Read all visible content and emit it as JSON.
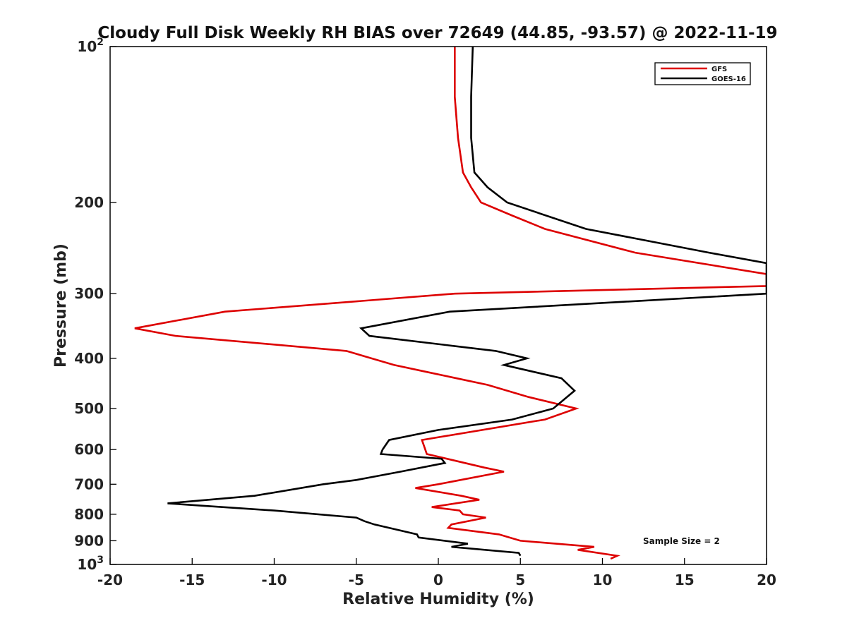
{
  "chart_data": {
    "type": "line",
    "title": "Cloudy Full Disk Weekly RH BIAS over 72649 (44.85, -93.57) @ 2022-11-19",
    "xlabel": "Relative Humidity (%)",
    "ylabel": "Pressure (mb)",
    "xlim": [
      -20,
      20
    ],
    "ylim": [
      100,
      1000
    ],
    "y_scale": "log",
    "y_reversed": true,
    "x_ticks": [
      "-20",
      "-15",
      "-10",
      "-5",
      "0",
      "5",
      "10",
      "15",
      "20"
    ],
    "y_ticks": [
      {
        "value": 100,
        "base": "10",
        "exp": "2"
      },
      {
        "value": 200,
        "label": "200"
      },
      {
        "value": 300,
        "label": "300"
      },
      {
        "value": 400,
        "label": "400"
      },
      {
        "value": 500,
        "label": "500"
      },
      {
        "value": 600,
        "label": "600"
      },
      {
        "value": 700,
        "label": "700"
      },
      {
        "value": 800,
        "label": "800"
      },
      {
        "value": 900,
        "label": "900"
      },
      {
        "value": 1000,
        "base": "10",
        "exp": "3"
      }
    ],
    "grid": false,
    "legend_position": "top-right",
    "annotation": "Sample Size = 2",
    "series": [
      {
        "name": "GFS",
        "color": "#dd0000",
        "points": [
          [
            1,
            100
          ],
          [
            1,
            125
          ],
          [
            1.2,
            150
          ],
          [
            1.5,
            175
          ],
          [
            2,
            187
          ],
          [
            2.6,
            200
          ],
          [
            4.5,
            212
          ],
          [
            6.5,
            225
          ],
          [
            12,
            250
          ],
          [
            20,
            275
          ],
          [
            20,
            290
          ],
          [
            1,
            300
          ],
          [
            -13,
            325
          ],
          [
            -18.5,
            350
          ],
          [
            -16,
            362
          ],
          [
            -5.6,
            387
          ],
          [
            -2.7,
            412
          ],
          [
            -0.7,
            425
          ],
          [
            3,
            450
          ],
          [
            5.5,
            475
          ],
          [
            8.4,
            500
          ],
          [
            6.5,
            525
          ],
          [
            -1,
            575
          ],
          [
            -0.7,
            612
          ],
          [
            2.8,
            650
          ],
          [
            4,
            662
          ],
          [
            0,
            700
          ],
          [
            -1.4,
            712
          ],
          [
            1.4,
            737
          ],
          [
            2.5,
            750
          ],
          [
            -0.4,
            775
          ],
          [
            1.3,
            787
          ],
          [
            1.5,
            800
          ],
          [
            2.9,
            812
          ],
          [
            0.8,
            837
          ],
          [
            0.6,
            850
          ],
          [
            3.7,
            875
          ],
          [
            5,
            900
          ],
          [
            9.5,
            925
          ],
          [
            8.5,
            937
          ],
          [
            10.9,
            962
          ],
          [
            10.5,
            975
          ]
        ]
      },
      {
        "name": "GOES-16",
        "color": "#000000",
        "points": [
          [
            2.1,
            100
          ],
          [
            2,
            125
          ],
          [
            2,
            150
          ],
          [
            2.2,
            175
          ],
          [
            3,
            187
          ],
          [
            4.2,
            200
          ],
          [
            9,
            225
          ],
          [
            16.5,
            250
          ],
          [
            20,
            262
          ],
          [
            20,
            300
          ],
          [
            0.7,
            325
          ],
          [
            -4.7,
            350
          ],
          [
            -4.2,
            362
          ],
          [
            3.5,
            387
          ],
          [
            5.4,
            400
          ],
          [
            4,
            412
          ],
          [
            7.5,
            437
          ],
          [
            8.3,
            462
          ],
          [
            7,
            500
          ],
          [
            4.5,
            525
          ],
          [
            0,
            550
          ],
          [
            -3,
            575
          ],
          [
            -3.4,
            600
          ],
          [
            -3.5,
            612
          ],
          [
            0.2,
            625
          ],
          [
            0.4,
            637
          ],
          [
            -2.3,
            662
          ],
          [
            -5,
            687
          ],
          [
            -7,
            700
          ],
          [
            -11.2,
            737
          ],
          [
            -16.5,
            762
          ],
          [
            -10,
            787
          ],
          [
            -5,
            812
          ],
          [
            -4.5,
            825
          ],
          [
            -3.9,
            837
          ],
          [
            -1.3,
            875
          ],
          [
            -1.2,
            887
          ],
          [
            1.8,
            912
          ],
          [
            0.8,
            925
          ],
          [
            4.9,
            950
          ],
          [
            5,
            962
          ]
        ]
      }
    ]
  }
}
